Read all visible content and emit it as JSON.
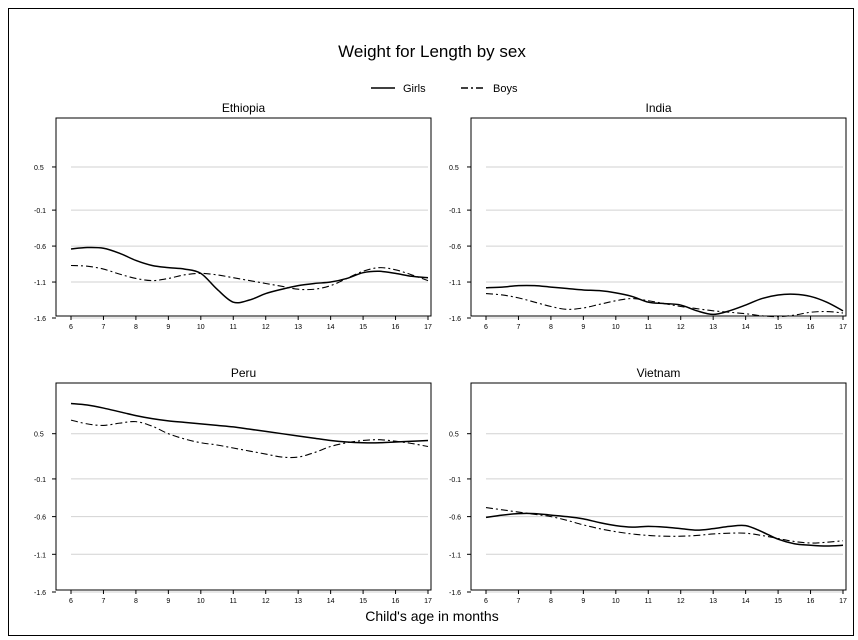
{
  "chart_data": {
    "type": "line",
    "title": "Weight for Length by sex",
    "xlabel": "Child's age in months",
    "ylabel": "",
    "legend": {
      "placement": "top-center",
      "entries": [
        {
          "name": "Girls",
          "style": "solid"
        },
        {
          "name": "Boys",
          "style": "dash-dot"
        }
      ]
    },
    "grid": true,
    "xlim": [
      6,
      17
    ],
    "ylim": [
      -1.6,
      1.0
    ],
    "x_ticks": [
      6,
      7,
      8,
      9,
      10,
      11,
      12,
      13,
      14,
      15,
      16,
      17
    ],
    "y_ticks": [
      -1.6,
      -1.1,
      -0.6,
      -0.1,
      0.5
    ],
    "x_tick_labels": [
      "6",
      "7",
      "8",
      "9",
      "10",
      "11",
      "12",
      "13",
      "14",
      "15",
      "16",
      "17"
    ],
    "y_tick_labels": [
      "-1.6",
      "-1.1",
      "-0.6",
      "-0.1",
      "0.5"
    ],
    "panels": [
      {
        "title": "Ethiopia",
        "series": [
          {
            "name": "Girls",
            "x": [
              6,
              6.5,
              7,
              7.5,
              8,
              8.5,
              9,
              9.5,
              10,
              10.5,
              11,
              11.5,
              12,
              12.5,
              13,
              13.5,
              14,
              14.5,
              15,
              15.5,
              16,
              16.5,
              17
            ],
            "y": [
              -0.64,
              -0.62,
              -0.63,
              -0.7,
              -0.8,
              -0.87,
              -0.9,
              -0.92,
              -0.98,
              -1.2,
              -1.38,
              -1.35,
              -1.26,
              -1.2,
              -1.15,
              -1.12,
              -1.1,
              -1.05,
              -0.97,
              -0.95,
              -0.98,
              -1.02,
              -1.04
            ]
          },
          {
            "name": "Boys",
            "x": [
              6,
              6.5,
              7,
              7.5,
              8,
              8.5,
              9,
              9.5,
              10,
              10.5,
              11,
              11.5,
              12,
              12.5,
              13,
              13.5,
              14,
              14.5,
              15,
              15.5,
              16,
              16.5,
              17
            ],
            "y": [
              -0.87,
              -0.88,
              -0.92,
              -0.99,
              -1.05,
              -1.08,
              -1.05,
              -1.0,
              -0.98,
              -1.0,
              -1.04,
              -1.08,
              -1.12,
              -1.16,
              -1.2,
              -1.2,
              -1.15,
              -1.05,
              -0.95,
              -0.9,
              -0.93,
              -1.0,
              -1.08
            ]
          }
        ]
      },
      {
        "title": "India",
        "series": [
          {
            "name": "Girls",
            "x": [
              6,
              6.5,
              7,
              7.5,
              8,
              8.5,
              9,
              9.5,
              10,
              10.5,
              11,
              11.5,
              12,
              12.5,
              13,
              13.5,
              14,
              14.5,
              15,
              15.5,
              16,
              16.5,
              17
            ],
            "y": [
              -1.18,
              -1.17,
              -1.15,
              -1.15,
              -1.17,
              -1.19,
              -1.21,
              -1.22,
              -1.25,
              -1.3,
              -1.38,
              -1.4,
              -1.42,
              -1.5,
              -1.55,
              -1.5,
              -1.42,
              -1.33,
              -1.28,
              -1.27,
              -1.3,
              -1.38,
              -1.5
            ]
          },
          {
            "name": "Boys",
            "x": [
              6,
              6.5,
              7,
              7.5,
              8,
              8.5,
              9,
              9.5,
              10,
              10.5,
              11,
              11.5,
              12,
              12.5,
              13,
              13.5,
              14,
              14.5,
              15,
              15.5,
              16,
              16.5,
              17
            ],
            "y": [
              -1.26,
              -1.28,
              -1.32,
              -1.38,
              -1.44,
              -1.48,
              -1.46,
              -1.41,
              -1.36,
              -1.33,
              -1.36,
              -1.4,
              -1.44,
              -1.47,
              -1.5,
              -1.52,
              -1.54,
              -1.57,
              -1.58,
              -1.56,
              -1.52,
              -1.51,
              -1.53
            ]
          }
        ]
      },
      {
        "title": "Peru",
        "series": [
          {
            "name": "Girls",
            "x": [
              6,
              6.5,
              7,
              7.5,
              8,
              8.5,
              9,
              9.5,
              10,
              10.5,
              11,
              11.5,
              12,
              12.5,
              13,
              13.5,
              14,
              14.5,
              15,
              15.5,
              16,
              16.5,
              17
            ],
            "y": [
              0.9,
              0.88,
              0.84,
              0.79,
              0.74,
              0.7,
              0.67,
              0.65,
              0.63,
              0.61,
              0.59,
              0.56,
              0.53,
              0.5,
              0.47,
              0.44,
              0.41,
              0.39,
              0.38,
              0.38,
              0.39,
              0.4,
              0.41
            ]
          },
          {
            "name": "Boys",
            "x": [
              6,
              6.5,
              7,
              7.5,
              8,
              8.5,
              9,
              9.5,
              10,
              10.5,
              11,
              11.5,
              12,
              12.5,
              13,
              13.5,
              14,
              14.5,
              15,
              15.5,
              16,
              16.5,
              17
            ],
            "y": [
              0.68,
              0.63,
              0.61,
              0.64,
              0.66,
              0.6,
              0.5,
              0.43,
              0.38,
              0.35,
              0.31,
              0.27,
              0.23,
              0.19,
              0.19,
              0.25,
              0.33,
              0.38,
              0.41,
              0.42,
              0.4,
              0.37,
              0.33
            ]
          }
        ]
      },
      {
        "title": "Vietnam",
        "series": [
          {
            "name": "Girls",
            "x": [
              6,
              6.5,
              7,
              7.5,
              8,
              8.5,
              9,
              9.5,
              10,
              10.5,
              11,
              11.5,
              12,
              12.5,
              13,
              13.5,
              14,
              14.5,
              15,
              15.5,
              16,
              16.5,
              17
            ],
            "y": [
              -0.61,
              -0.58,
              -0.56,
              -0.56,
              -0.58,
              -0.6,
              -0.63,
              -0.68,
              -0.72,
              -0.74,
              -0.73,
              -0.74,
              -0.76,
              -0.78,
              -0.76,
              -0.73,
              -0.72,
              -0.8,
              -0.9,
              -0.96,
              -0.98,
              -0.99,
              -0.98
            ]
          },
          {
            "name": "Boys",
            "x": [
              6,
              6.5,
              7,
              7.5,
              8,
              8.5,
              9,
              9.5,
              10,
              10.5,
              11,
              11.5,
              12,
              12.5,
              13,
              13.5,
              14,
              14.5,
              15,
              15.5,
              16,
              16.5,
              17
            ],
            "y": [
              -0.48,
              -0.51,
              -0.54,
              -0.57,
              -0.6,
              -0.65,
              -0.71,
              -0.76,
              -0.8,
              -0.83,
              -0.85,
              -0.86,
              -0.86,
              -0.85,
              -0.83,
              -0.82,
              -0.82,
              -0.85,
              -0.89,
              -0.93,
              -0.95,
              -0.94,
              -0.92
            ]
          }
        ]
      }
    ]
  }
}
